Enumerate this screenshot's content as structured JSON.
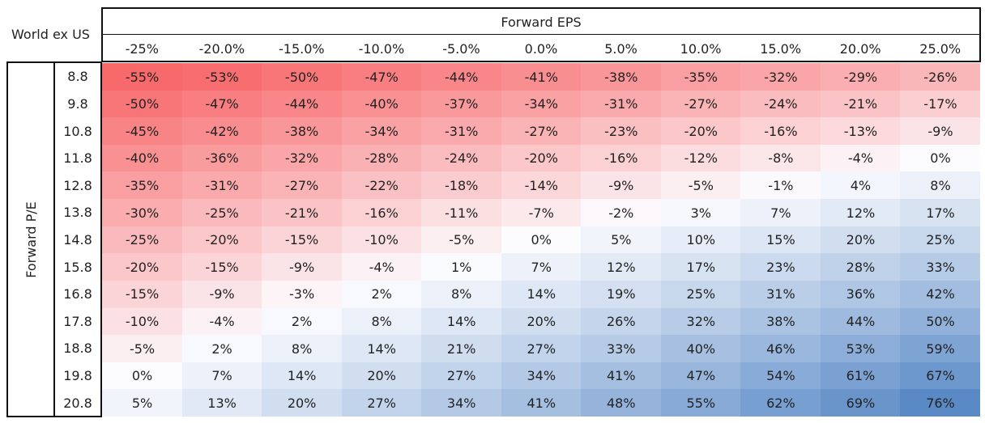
{
  "corner_label": "World ex US",
  "column_header": "Forward EPS",
  "row_header": "Forward P/E",
  "columns": [
    "-25%",
    "-20.0%",
    "-15.0%",
    "-10.0%",
    "-5.0%",
    "0.0%",
    "5.0%",
    "10.0%",
    "15.0%",
    "20.0%",
    "25.0%"
  ],
  "rows": [
    {
      "label": "8.8",
      "cells": [
        "-55%",
        "-53%",
        "-50%",
        "-47%",
        "-44%",
        "-41%",
        "-38%",
        "-35%",
        "-32%",
        "-29%",
        "-26%"
      ]
    },
    {
      "label": "9.8",
      "cells": [
        "-50%",
        "-47%",
        "-44%",
        "-40%",
        "-37%",
        "-34%",
        "-31%",
        "-27%",
        "-24%",
        "-21%",
        "-17%"
      ]
    },
    {
      "label": "10.8",
      "cells": [
        "-45%",
        "-42%",
        "-38%",
        "-34%",
        "-31%",
        "-27%",
        "-23%",
        "-20%",
        "-16%",
        "-13%",
        "-9%"
      ]
    },
    {
      "label": "11.8",
      "cells": [
        "-40%",
        "-36%",
        "-32%",
        "-28%",
        "-24%",
        "-20%",
        "-16%",
        "-12%",
        "-8%",
        "-4%",
        "0%"
      ]
    },
    {
      "label": "12.8",
      "cells": [
        "-35%",
        "-31%",
        "-27%",
        "-22%",
        "-18%",
        "-14%",
        "-9%",
        "-5%",
        "-1%",
        "4%",
        "8%"
      ]
    },
    {
      "label": "13.8",
      "cells": [
        "-30%",
        "-25%",
        "-21%",
        "-16%",
        "-11%",
        "-7%",
        "-2%",
        "3%",
        "7%",
        "12%",
        "17%"
      ]
    },
    {
      "label": "14.8",
      "cells": [
        "-25%",
        "-20%",
        "-15%",
        "-10%",
        "-5%",
        "0%",
        "5%",
        "10%",
        "15%",
        "20%",
        "25%"
      ]
    },
    {
      "label": "15.8",
      "cells": [
        "-20%",
        "-15%",
        "-9%",
        "-4%",
        "1%",
        "7%",
        "12%",
        "17%",
        "23%",
        "28%",
        "33%"
      ]
    },
    {
      "label": "16.8",
      "cells": [
        "-15%",
        "-9%",
        "-3%",
        "2%",
        "8%",
        "14%",
        "19%",
        "25%",
        "31%",
        "36%",
        "42%"
      ]
    },
    {
      "label": "17.8",
      "cells": [
        "-10%",
        "-4%",
        "2%",
        "8%",
        "14%",
        "20%",
        "26%",
        "32%",
        "38%",
        "44%",
        "50%"
      ]
    },
    {
      "label": "18.8",
      "cells": [
        "-5%",
        "2%",
        "8%",
        "14%",
        "21%",
        "27%",
        "33%",
        "40%",
        "46%",
        "53%",
        "59%"
      ]
    },
    {
      "label": "19.8",
      "cells": [
        "0%",
        "7%",
        "14%",
        "20%",
        "27%",
        "34%",
        "41%",
        "47%",
        "54%",
        "61%",
        "67%"
      ]
    },
    {
      "label": "20.8",
      "cells": [
        "5%",
        "13%",
        "20%",
        "27%",
        "34%",
        "41%",
        "48%",
        "55%",
        "62%",
        "69%",
        "76%"
      ]
    }
  ]
}
